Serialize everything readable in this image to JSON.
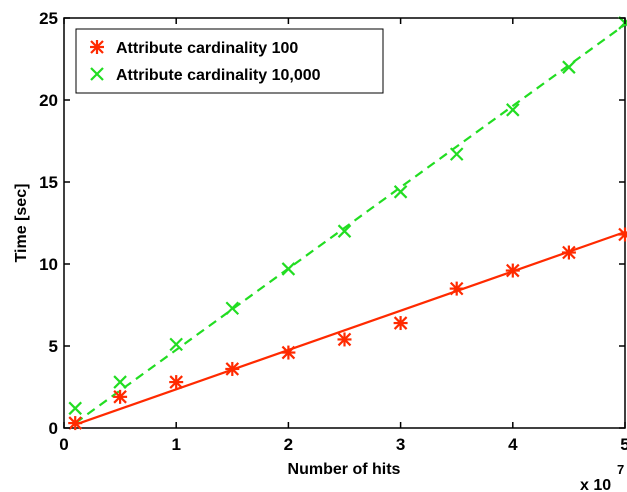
{
  "chart_data": {
    "type": "scatter",
    "title": "",
    "xlabel": "Number of hits",
    "ylabel": "Time [sec]",
    "x_multiplier_label": {
      "base": "x 10",
      "exponent": "7"
    },
    "xlim": [
      0,
      5
    ],
    "ylim": [
      0,
      25
    ],
    "xticks": [
      0,
      1,
      2,
      3,
      4,
      5
    ],
    "yticks": [
      0,
      5,
      10,
      15,
      20,
      25
    ],
    "grid": false,
    "legend_position": "top-left",
    "series": [
      {
        "name": "Attribute cardinality 100",
        "color": "#ff2a00",
        "marker": "asterisk",
        "x": [
          0.1,
          0.5,
          1.0,
          1.5,
          2.0,
          2.5,
          3.0,
          3.5,
          4.0,
          4.5,
          5.0
        ],
        "y": [
          0.3,
          1.9,
          2.8,
          3.6,
          4.6,
          5.4,
          6.4,
          8.5,
          9.6,
          10.7,
          11.8
        ],
        "fit": {
          "x": [
            0.1,
            5.0
          ],
          "y": [
            0.2,
            11.95
          ],
          "style": "solid"
        }
      },
      {
        "name": "Attribute cardinality 10,000",
        "color": "#22dd22",
        "marker": "x",
        "x": [
          0.1,
          0.5,
          1.0,
          1.5,
          2.0,
          2.5,
          3.0,
          3.5,
          4.0,
          4.5,
          5.0
        ],
        "y": [
          1.2,
          2.8,
          5.1,
          7.3,
          9.7,
          12.0,
          14.4,
          16.7,
          19.4,
          22.0,
          24.7
        ],
        "fit": {
          "x": [
            0.1,
            5.0
          ],
          "y": [
            0.3,
            24.6
          ],
          "style": "dashed"
        }
      }
    ]
  }
}
